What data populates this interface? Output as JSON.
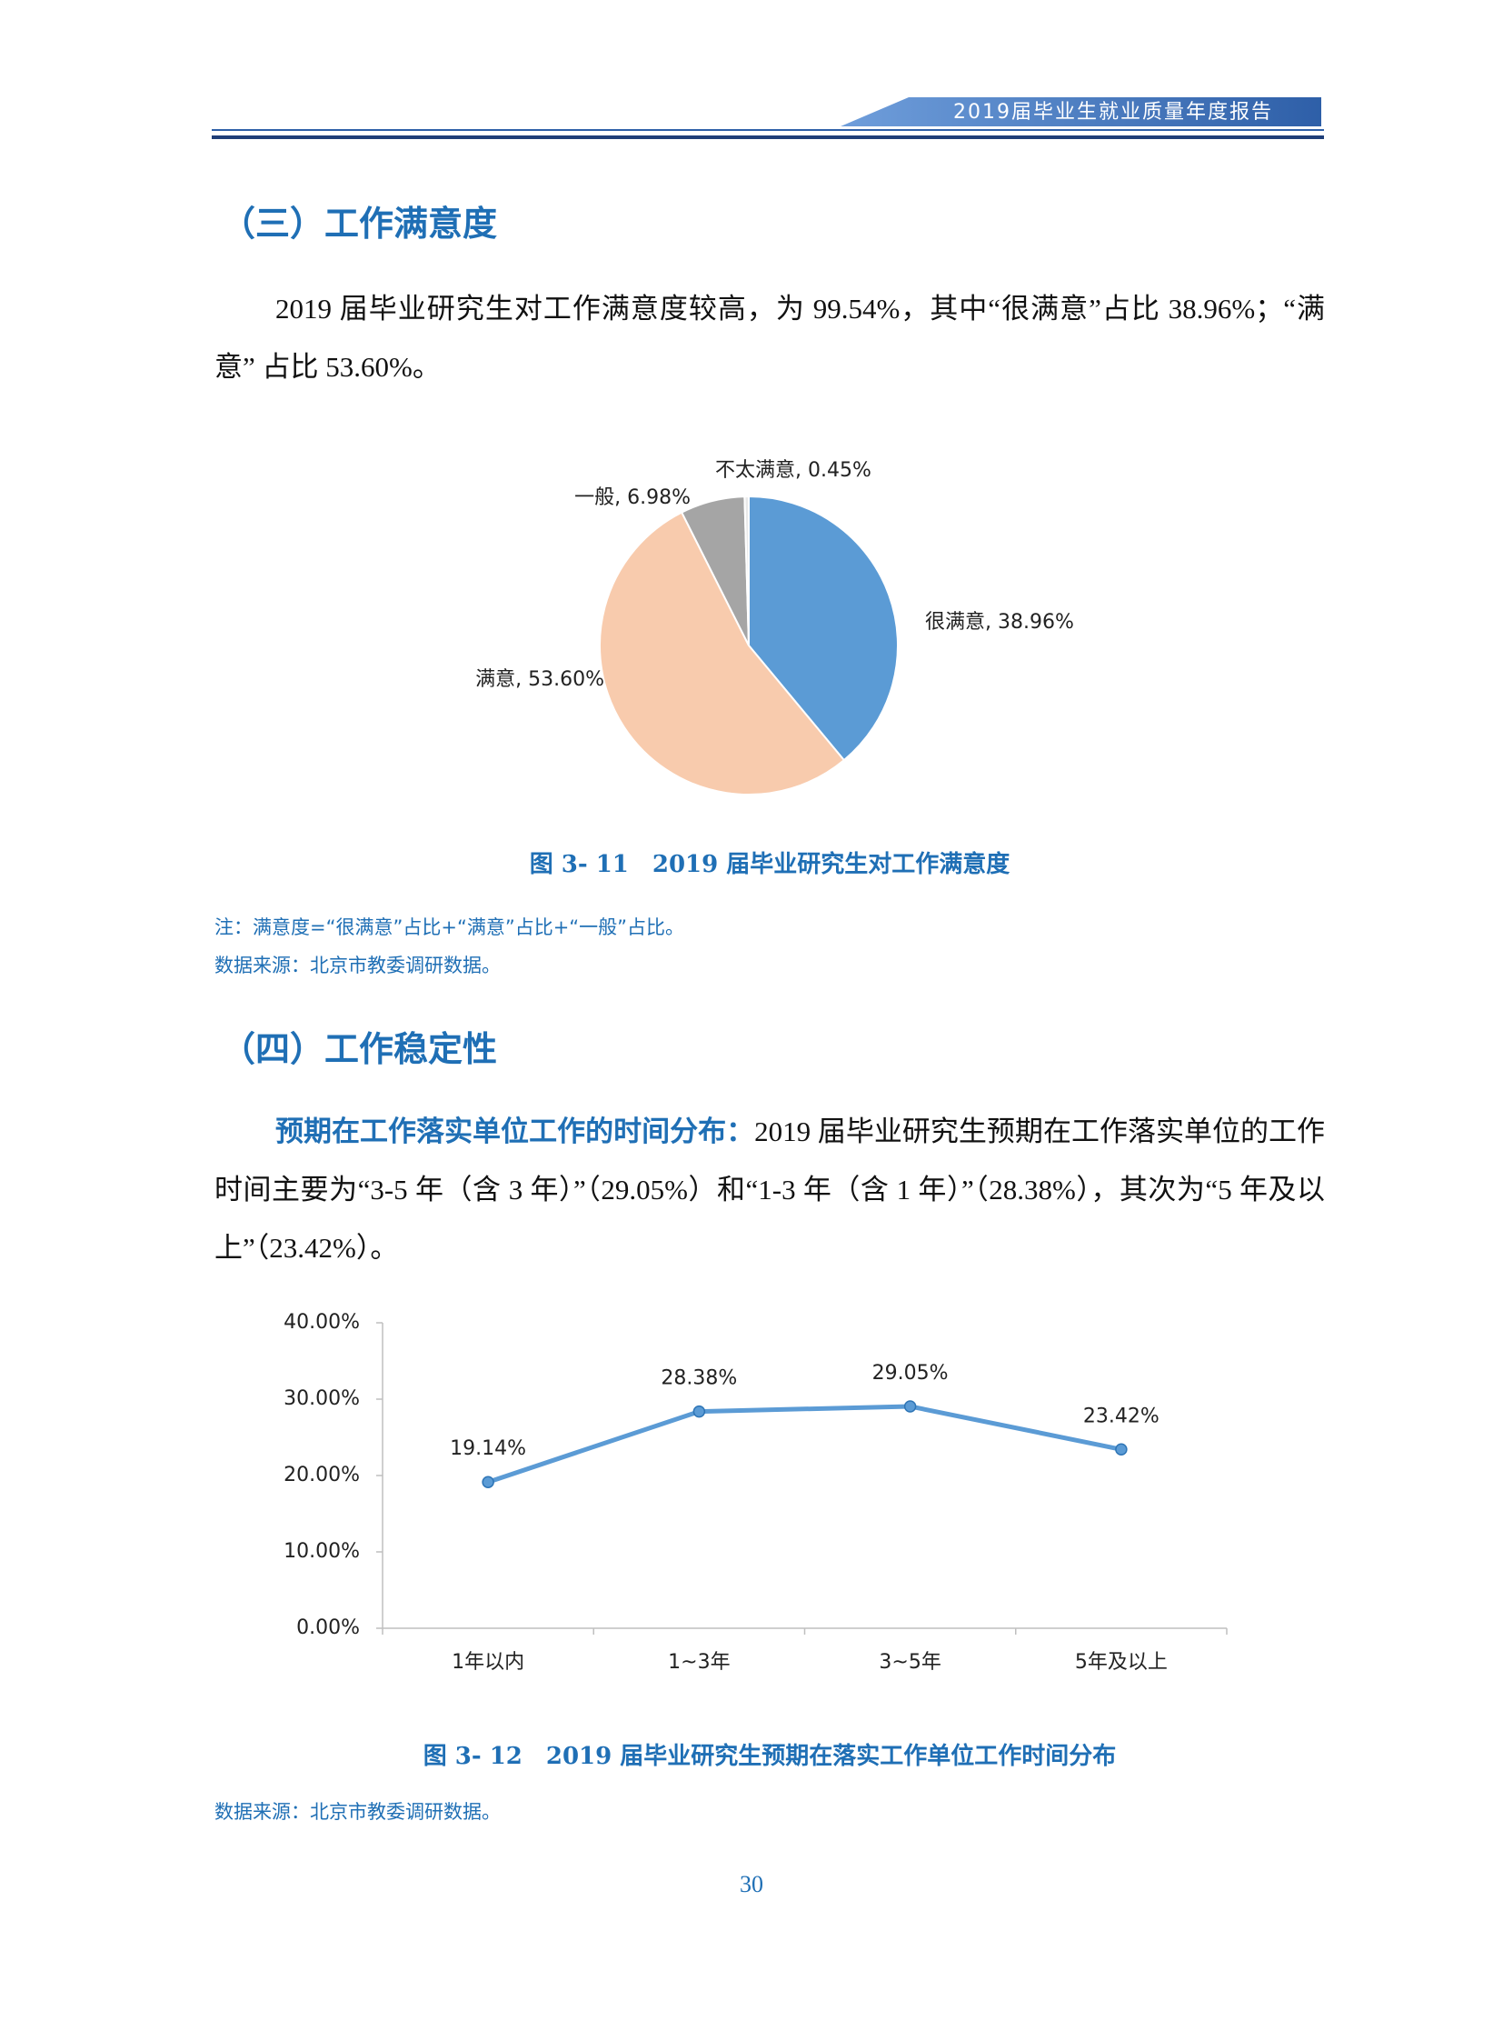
{
  "header": {
    "title": "2019届毕业生就业质量年度报告"
  },
  "section_3": {
    "heading": "（三）工作满意度",
    "paragraph": "2019 届毕业研究生对工作满意度较高，为 99.54%，其中“很满意”占比 38.96%；“满意” 占比 53.60%。"
  },
  "section_4": {
    "heading": "（四）工作稳定性",
    "paragraph_lead": "预期在工作落实单位工作的时间分布：",
    "paragraph": "2019 届毕业研究生预期在工作落实单位的工作时间主要为“3-5 年（含 3 年）”（29.05%）和“1-3 年（含 1 年）”（28.38%），其次为“5 年及以上”（23.42%）。"
  },
  "chart_data": [
    {
      "type": "pie",
      "title": "图 3- 11　2019 届毕业研究生对工作满意度",
      "values": [
        38.96,
        53.6,
        6.98,
        0.45
      ],
      "value_labels": [
        "很满意, 38.96%",
        "满意, 53.60%",
        "一般, 6.98%",
        "不太满意, 0.45%"
      ],
      "colors": [
        "#5b9bd5",
        "#f8cbad",
        "#a5a5a5",
        "#e9e9e9"
      ],
      "note": "注：满意度=“很满意”占比+“满意”占比+“一般”占比。",
      "source": "数据来源：北京市教委调研数据。"
    },
    {
      "type": "line",
      "title": "图 3- 12　2019 届毕业研究生预期在落实工作单位工作时间分布",
      "categories": [
        "1年以内",
        "1~3年",
        "3~5年",
        "5年及以上"
      ],
      "values": [
        19.14,
        28.38,
        29.05,
        23.42
      ],
      "value_labels": [
        "19.14%",
        "28.38%",
        "29.05%",
        "23.42%"
      ],
      "color": "#5b9bd5",
      "ylim": [
        0,
        40
      ],
      "yticks": [
        {
          "value": 0,
          "label": "0.00%"
        },
        {
          "value": 10,
          "label": "10.00%"
        },
        {
          "value": 20,
          "label": "20.00%"
        },
        {
          "value": 30,
          "label": "30.00%"
        },
        {
          "value": 40,
          "label": "40.00%"
        }
      ],
      "grid": false,
      "source": "数据来源：北京市教委调研数据。"
    }
  ],
  "page_number": "30"
}
